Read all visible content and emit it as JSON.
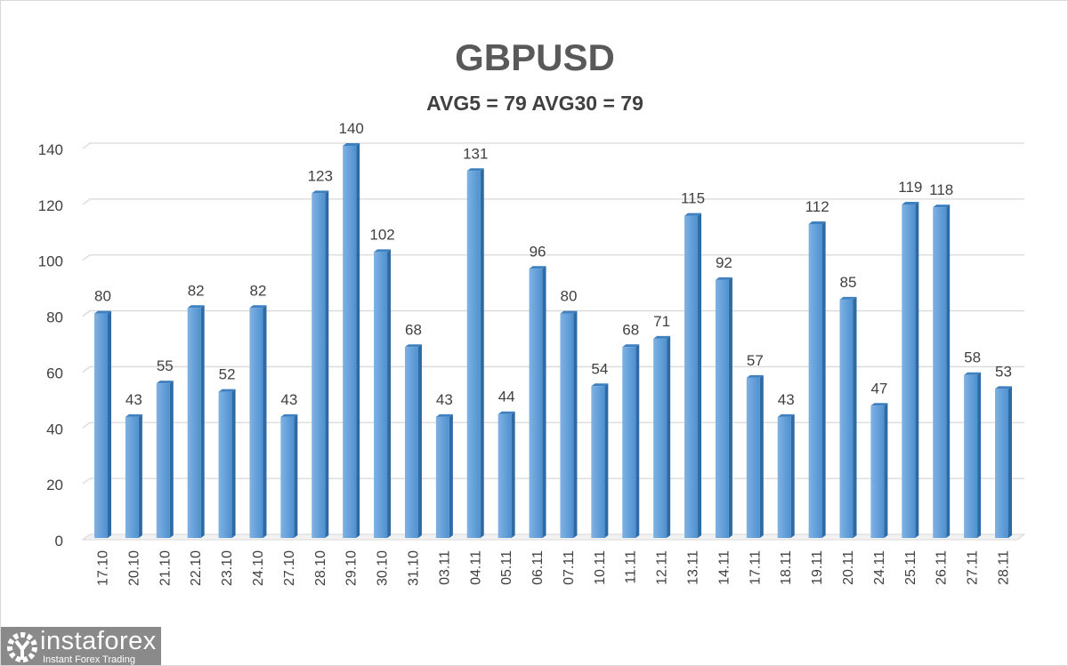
{
  "chart_data": {
    "type": "bar",
    "title": "GBPUSD",
    "subtitle": "AVG5 = 79 AVG30 = 79",
    "categories": [
      "17.10",
      "20.10",
      "21.10",
      "22.10",
      "23.10",
      "24.10",
      "27.10",
      "28.10",
      "29.10",
      "30.10",
      "31.10",
      "03.11",
      "04.11",
      "05.11",
      "06.11",
      "07.11",
      "10.11",
      "11.11",
      "12.11",
      "13.11",
      "14.11",
      "17.11",
      "18.11",
      "19.11",
      "20.11",
      "24.11",
      "25.11",
      "26.11",
      "27.11",
      "28.11"
    ],
    "values": [
      80,
      43,
      55,
      82,
      52,
      82,
      43,
      123,
      140,
      102,
      68,
      43,
      131,
      44,
      96,
      80,
      54,
      68,
      71,
      115,
      92,
      57,
      43,
      112,
      85,
      47,
      119,
      118,
      58,
      53
    ],
    "ylim": [
      0,
      140
    ],
    "yticks": [
      0,
      20,
      40,
      60,
      80,
      100,
      120,
      140
    ],
    "grid": true,
    "data_labels": true,
    "bar_color": "#5b9bd5"
  },
  "logo": {
    "name": "instaforex",
    "tagline": "Instant Forex Trading"
  }
}
